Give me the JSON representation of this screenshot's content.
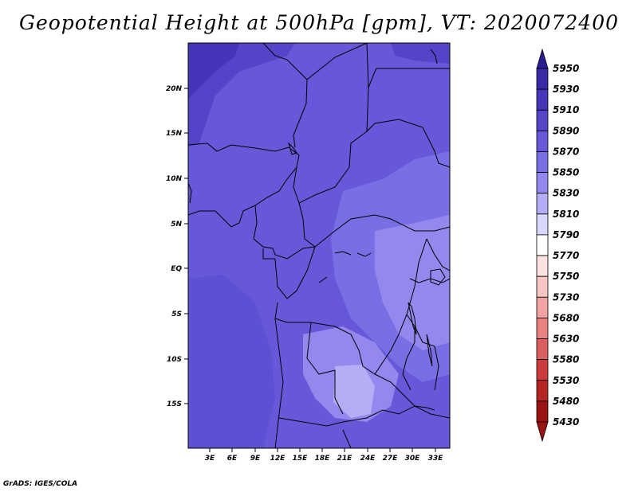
{
  "title": "Geopotential Height at 500hPa [gpm], VT: 2020072400",
  "credit": "GrADS: IGES/COLA",
  "map": {
    "lat_ticks": [
      "20N",
      "15N",
      "10N",
      "5N",
      "EQ",
      "5S",
      "10S",
      "15S"
    ],
    "lon_ticks": [
      "3E",
      "6E",
      "9E",
      "12E",
      "15E",
      "18E",
      "21E",
      "24E",
      "27E",
      "30E",
      "33E"
    ]
  },
  "colorbar": {
    "levels": [
      "5950",
      "5930",
      "5910",
      "5890",
      "5870",
      "5850",
      "5830",
      "5810",
      "5790",
      "5770",
      "5750",
      "5730",
      "5680",
      "5630",
      "5580",
      "5530",
      "5480",
      "5430"
    ],
    "colors": [
      "#2a1c92",
      "#3a2aa8",
      "#4535b8",
      "#5444c8",
      "#6658d8",
      "#7a6ee4",
      "#9288ee",
      "#b4aef6",
      "#d8d6fb",
      "#ffffff",
      "#fde0e0",
      "#f9c4c4",
      "#f2a4a4",
      "#e88282",
      "#dc5e5e",
      "#cc3c3c",
      "#b62424",
      "#9a1414"
    ]
  }
}
